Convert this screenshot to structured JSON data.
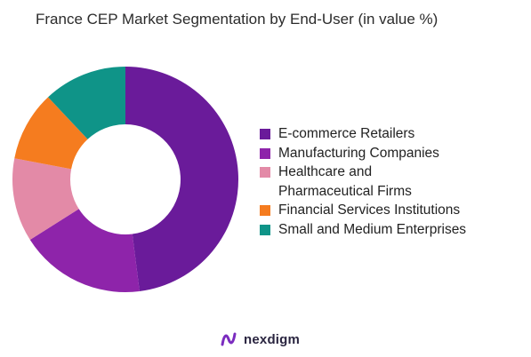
{
  "chart_data": {
    "type": "pie",
    "title": "France CEP Market Segmentation by End-User (in value %)",
    "donut": true,
    "legend_position": "right",
    "slices": [
      {
        "label": "E-commerce Retailers",
        "value": 48,
        "color": "#6a1b9a"
      },
      {
        "label": "Manufacturing Companies",
        "value": 18,
        "color": "#8e24aa"
      },
      {
        "label": "Healthcare and Pharmaceutical Firms",
        "legend_text": "Healthcare and\nPharmaceutical Firms",
        "value": 12,
        "color": "#e38aa7"
      },
      {
        "label": "Financial Services Institutions",
        "value": 10,
        "color": "#f57c1f"
      },
      {
        "label": "Small and Medium Enterprises",
        "value": 12,
        "color": "#0f9488"
      }
    ]
  },
  "brand": {
    "name": "nexdigm",
    "icon": "nexdigm-logo-icon",
    "icon_color": "#7b2cbf"
  }
}
